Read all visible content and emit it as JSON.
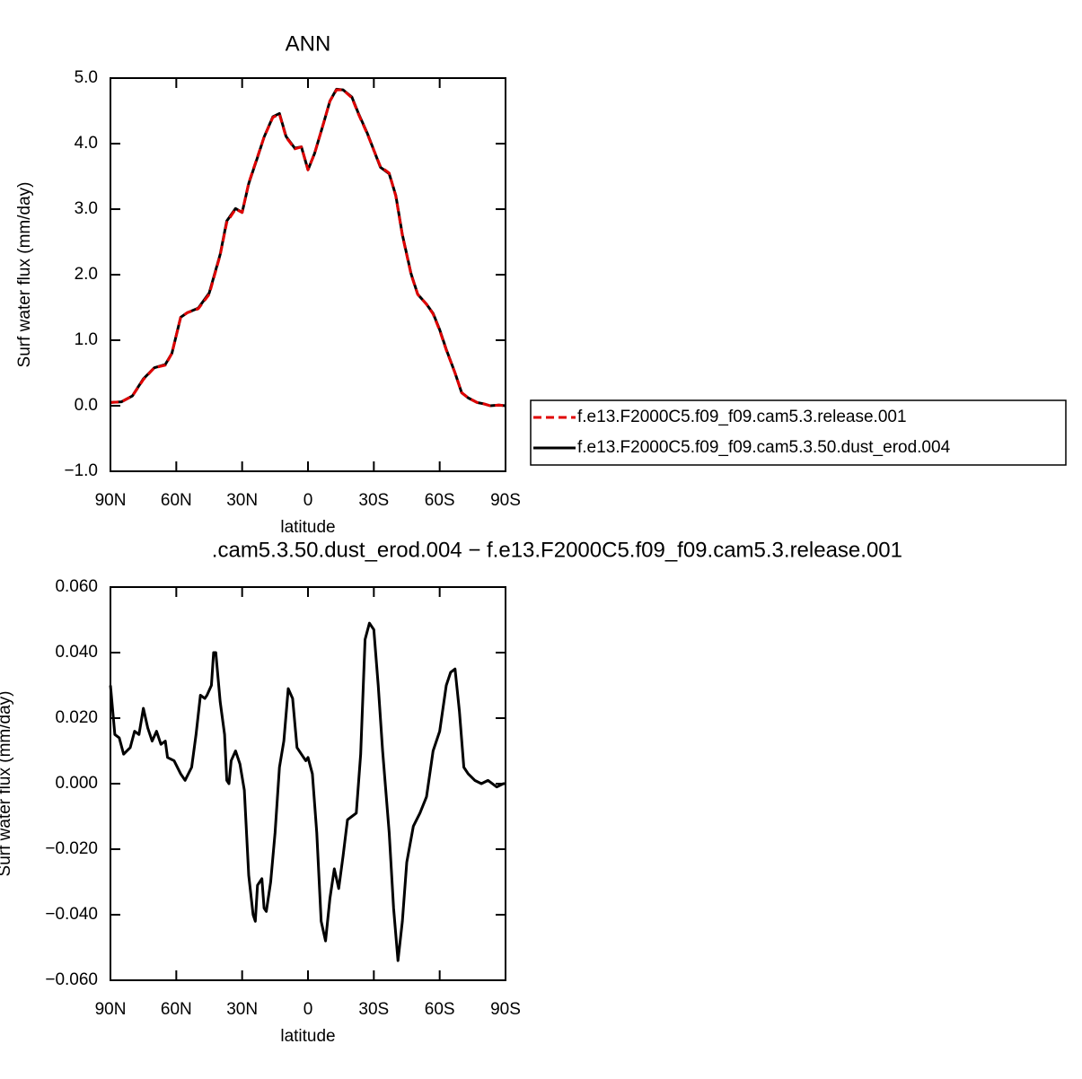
{
  "chart_data": [
    {
      "type": "line",
      "title": "ANN",
      "xlabel": "latitude",
      "ylabel": "Surf water flux (mm/day)",
      "xlim": [
        90,
        -90
      ],
      "xticks": [
        {
          "value": 90,
          "label": "90N"
        },
        {
          "value": 60,
          "label": "60N"
        },
        {
          "value": 30,
          "label": "30N"
        },
        0,
        {
          "value": -30,
          "label": "30S"
        },
        {
          "value": -60,
          "label": "60S"
        },
        {
          "value": -90,
          "label": "90S"
        }
      ],
      "ylim": [
        -1,
        5
      ],
      "yticks": [
        {
          "value": -1,
          "label": "−1.0"
        },
        {
          "value": 0,
          "label": "0.0"
        },
        {
          "value": 1,
          "label": "1.0"
        },
        {
          "value": 2,
          "label": "2.0"
        },
        {
          "value": 3,
          "label": "3.0"
        },
        {
          "value": 4,
          "label": "4.0"
        },
        {
          "value": 5,
          "label": "5.0"
        }
      ],
      "legend": "right",
      "x": [
        90,
        85,
        80,
        75,
        70,
        65,
        62,
        58,
        55,
        50,
        45,
        40,
        37,
        33,
        30,
        27,
        23,
        20,
        16,
        13,
        10,
        6,
        3,
        0,
        -3,
        -7,
        -10,
        -13,
        -16,
        -20,
        -23,
        -27,
        -30,
        -33,
        -37,
        -40,
        -43,
        -47,
        -50,
        -54,
        -57,
        -60,
        -63,
        -67,
        -70,
        -73,
        -77,
        -80,
        -83,
        -87,
        -90
      ],
      "series": [
        {
          "name": "f.e13.F2000C5.f09_f09.cam5.3.release.001",
          "color": "#e00000",
          "line_style": "dashed",
          "values": [
            0.05,
            0.06,
            0.15,
            0.4,
            0.58,
            0.62,
            0.8,
            1.35,
            1.42,
            1.48,
            1.7,
            2.3,
            2.8,
            3.0,
            2.95,
            3.4,
            3.8,
            4.1,
            4.4,
            4.45,
            4.1,
            3.92,
            3.95,
            3.6,
            3.85,
            4.3,
            4.65,
            4.82,
            4.82,
            4.7,
            4.45,
            4.15,
            3.9,
            3.65,
            3.55,
            3.2,
            2.6,
            2.0,
            1.7,
            1.55,
            1.4,
            1.15,
            0.85,
            0.5,
            0.2,
            0.12,
            0.05,
            0.03,
            0.0,
            0.01,
            0.0
          ]
        },
        {
          "name": "f.e13.F2000C5.f09_f09.cam5.3.50.dust_erod.004",
          "color": "#000000",
          "line_style": "solid",
          "values": [
            0.05,
            0.06,
            0.15,
            0.41,
            0.58,
            0.63,
            0.8,
            1.35,
            1.42,
            1.49,
            1.72,
            2.31,
            2.82,
            3.01,
            2.95,
            3.39,
            3.79,
            4.1,
            4.41,
            4.46,
            4.11,
            3.93,
            3.95,
            3.6,
            3.85,
            4.3,
            4.65,
            4.83,
            4.82,
            4.71,
            4.46,
            4.16,
            3.9,
            3.64,
            3.54,
            3.21,
            2.61,
            2.01,
            1.7,
            1.55,
            1.41,
            1.16,
            0.86,
            0.5,
            0.2,
            0.12,
            0.05,
            0.03,
            0.0,
            0.01,
            0.0
          ]
        }
      ]
    },
    {
      "type": "line",
      "title": ".cam5.3.50.dust_erod.004 − f.e13.F2000C5.f09_f09.cam5.3.release.001",
      "xlabel": "latitude",
      "ylabel": "Surf water flux (mm/day)",
      "xlim": [
        90,
        -90
      ],
      "xticks": [
        {
          "value": 90,
          "label": "90N"
        },
        {
          "value": 60,
          "label": "60N"
        },
        {
          "value": 30,
          "label": "30N"
        },
        0,
        {
          "value": -30,
          "label": "30S"
        },
        {
          "value": -60,
          "label": "60S"
        },
        {
          "value": -90,
          "label": "90S"
        }
      ],
      "ylim": [
        -0.06,
        0.06
      ],
      "yticks": [
        {
          "value": -0.06,
          "label": "−0.060"
        },
        {
          "value": -0.04,
          "label": "−0.040"
        },
        {
          "value": -0.02,
          "label": "−0.020"
        },
        {
          "value": 0,
          "label": "0.000"
        },
        {
          "value": 0.02,
          "label": "0.020"
        },
        {
          "value": 0.04,
          "label": "0.040"
        },
        {
          "value": 0.06,
          "label": "0.060"
        }
      ],
      "x": [
        90,
        88,
        86,
        84,
        81,
        79,
        77,
        75,
        73,
        71,
        69,
        67,
        65,
        64,
        61,
        58,
        56,
        53,
        51,
        49,
        47,
        46,
        44,
        43,
        42,
        40,
        38,
        37,
        36,
        35,
        33,
        31,
        29,
        27,
        25,
        24,
        23,
        21,
        20,
        19,
        17,
        15,
        13,
        11,
        9,
        7,
        5,
        3,
        1,
        0,
        -2,
        -4,
        -6,
        -8,
        -10,
        -12,
        -14,
        -16,
        -18,
        -20,
        -22,
        -24,
        -26,
        -28,
        -30,
        -32,
        -34,
        -37,
        -39,
        -41,
        -43,
        -45,
        -48,
        -51,
        -54,
        -57,
        -60,
        -63,
        -65,
        -67,
        -69,
        -71,
        -73,
        -76,
        -79,
        -82,
        -86,
        -89,
        -90
      ],
      "series": [
        {
          "color": "#000000",
          "line_style": "solid",
          "values": [
            0.03,
            0.015,
            0.014,
            0.009,
            0.011,
            0.016,
            0.015,
            0.023,
            0.017,
            0.013,
            0.016,
            0.012,
            0.013,
            0.008,
            0.007,
            0.003,
            0.001,
            0.005,
            0.015,
            0.027,
            0.026,
            0.027,
            0.03,
            0.04,
            0.04,
            0.025,
            0.015,
            0.001,
            0.0,
            0.007,
            0.01,
            0.006,
            -0.002,
            -0.028,
            -0.04,
            -0.042,
            -0.031,
            -0.029,
            -0.038,
            -0.039,
            -0.03,
            -0.015,
            0.005,
            0.013,
            0.029,
            0.026,
            0.011,
            0.009,
            0.007,
            0.008,
            0.003,
            -0.015,
            -0.042,
            -0.048,
            -0.035,
            -0.026,
            -0.032,
            -0.022,
            -0.011,
            -0.01,
            -0.009,
            0.009,
            0.044,
            0.049,
            0.047,
            0.03,
            0.01,
            -0.015,
            -0.038,
            -0.054,
            -0.042,
            -0.024,
            -0.013,
            -0.009,
            -0.004,
            0.01,
            0.016,
            0.03,
            0.034,
            0.035,
            0.022,
            0.005,
            0.003,
            0.001,
            0.0,
            0.001,
            -0.001,
            0.0,
            0.0
          ]
        }
      ]
    }
  ]
}
